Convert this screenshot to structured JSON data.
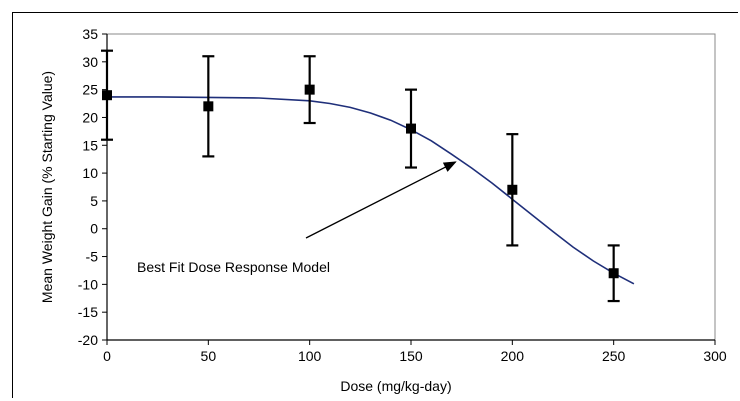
{
  "chart_data": {
    "type": "scatter",
    "title": "",
    "xlabel": "Dose (mg/kg-day)",
    "ylabel": "Mean Weight Gain (% Starting Value)",
    "xlim": [
      0,
      300
    ],
    "ylim": [
      -20,
      35
    ],
    "x_ticks": [
      0,
      50,
      100,
      150,
      200,
      250,
      300
    ],
    "y_ticks": [
      35,
      30,
      25,
      20,
      15,
      10,
      5,
      0,
      -5,
      -10,
      -15,
      -20
    ],
    "grid": false,
    "legend": "none",
    "points": [
      {
        "x": 0,
        "y": 24,
        "err_low": 16,
        "err_high": 32
      },
      {
        "x": 50,
        "y": 22,
        "err_low": 13,
        "err_high": 31
      },
      {
        "x": 100,
        "y": 25,
        "err_low": 19,
        "err_high": 31
      },
      {
        "x": 150,
        "y": 18,
        "err_low": 11,
        "err_high": 25
      },
      {
        "x": 200,
        "y": 7,
        "err_low": -3,
        "err_high": 17
      },
      {
        "x": 250,
        "y": -8,
        "err_low": -13,
        "err_high": -3
      }
    ],
    "fit_curve": {
      "x": [
        0,
        25,
        50,
        75,
        100,
        110,
        120,
        130,
        140,
        150,
        160,
        170,
        180,
        190,
        200,
        210,
        220,
        230,
        240,
        250,
        260
      ],
      "y": [
        23.7,
        23.7,
        23.6,
        23.5,
        23.0,
        22.5,
        21.8,
        20.8,
        19.5,
        17.8,
        15.8,
        13.4,
        10.9,
        8.2,
        5.3,
        2.4,
        -0.5,
        -3.3,
        -5.8,
        -8.0,
        -9.9
      ]
    },
    "annotation": {
      "text": "Best Fit Dose Response Model",
      "arrow_to": {
        "x": 172,
        "y": 12
      }
    },
    "colors": {
      "curve": "#1f2f7a",
      "markers": "#000000",
      "axes": "#000000"
    }
  }
}
